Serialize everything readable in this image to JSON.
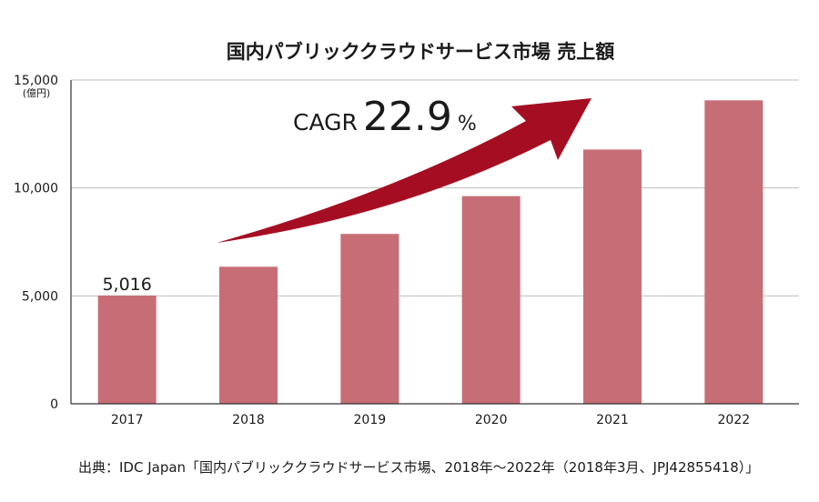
{
  "chart_data": {
    "type": "bar",
    "title": "国内パブリッククラウドサービス市場 売上額",
    "unit_label": "(億円)",
    "categories": [
      "2017",
      "2018",
      "2019",
      "2020",
      "2021",
      "2022"
    ],
    "values": [
      5016,
      6350,
      7870,
      9620,
      11780,
      14060
    ],
    "ylim": [
      0,
      15000
    ],
    "yticks": [
      0,
      5000,
      10000,
      15000
    ],
    "ytick_labels": [
      "0",
      "5,000",
      "10,000",
      "15,000"
    ],
    "data_labels": [
      {
        "index": 0,
        "text": "5,016"
      }
    ],
    "grid": true,
    "bar_color": "#c76d75",
    "annotation": {
      "prefix": "CAGR",
      "value": "22.9",
      "suffix": "%",
      "arrow_color": "#a50e22"
    }
  },
  "source": "出典：IDC Japan「国内パブリッククラウドサービス市場、2018年～2022年（2018年3月、JPJ42855418）」"
}
